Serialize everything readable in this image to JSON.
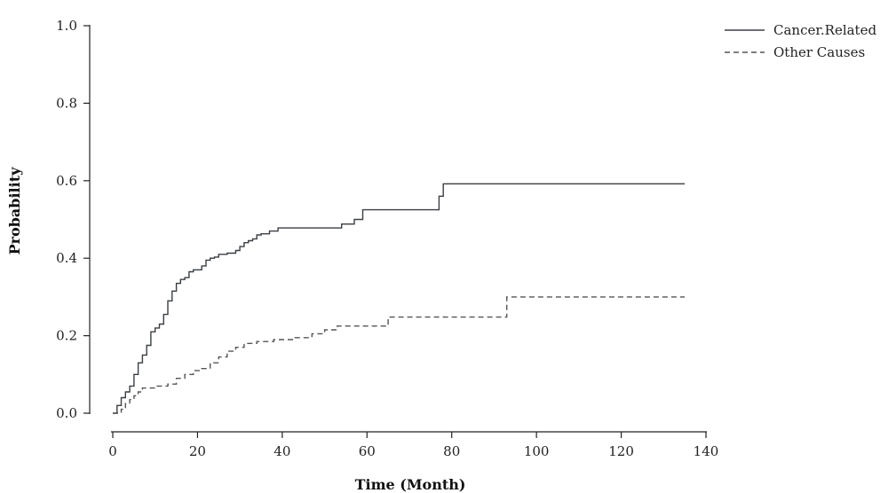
{
  "chart_data": {
    "type": "line",
    "title": "",
    "xlabel": "Time (Month)",
    "ylabel": "Probability",
    "xlim": [
      0,
      140
    ],
    "ylim": [
      0,
      1.0
    ],
    "xticks": [
      0,
      20,
      40,
      60,
      80,
      100,
      120,
      140
    ],
    "yticks": [
      0.0,
      0.2,
      0.4,
      0.6,
      0.8,
      1.0
    ],
    "ytick_labels": [
      "0.0",
      "0.2",
      "0.4",
      "0.6",
      "0.8",
      "1.0"
    ],
    "grid": false,
    "legend_position": "top-right",
    "series": [
      {
        "name": "Cancer.Related",
        "style": "solid",
        "color": "#3a3f44",
        "step": true,
        "x": [
          0,
          1,
          2,
          3,
          4,
          5,
          6,
          7,
          8,
          9,
          10,
          11,
          12,
          13,
          14,
          15,
          16,
          17,
          18,
          19,
          21,
          22,
          23,
          24,
          25,
          27,
          29,
          30,
          31,
          32,
          33,
          34,
          35,
          37,
          39,
          54,
          57,
          59,
          77,
          78,
          135
        ],
        "y": [
          0.0,
          0.02,
          0.04,
          0.055,
          0.07,
          0.1,
          0.13,
          0.15,
          0.175,
          0.21,
          0.22,
          0.23,
          0.255,
          0.29,
          0.315,
          0.335,
          0.345,
          0.35,
          0.365,
          0.37,
          0.38,
          0.395,
          0.4,
          0.403,
          0.41,
          0.413,
          0.42,
          0.43,
          0.44,
          0.445,
          0.45,
          0.46,
          0.463,
          0.47,
          0.478,
          0.488,
          0.5,
          0.525,
          0.56,
          0.592,
          0.592
        ]
      },
      {
        "name": "Other Causes",
        "style": "dashed",
        "color": "#555555",
        "step": true,
        "x": [
          0,
          2,
          3,
          4,
          5,
          6,
          7,
          10,
          13,
          15,
          17,
          19,
          21,
          23,
          25,
          27,
          29,
          31,
          34,
          38,
          43,
          47,
          50,
          53,
          65,
          93,
          135
        ],
        "y": [
          0.0,
          0.01,
          0.025,
          0.035,
          0.045,
          0.055,
          0.065,
          0.07,
          0.075,
          0.09,
          0.1,
          0.11,
          0.115,
          0.13,
          0.145,
          0.16,
          0.17,
          0.18,
          0.185,
          0.19,
          0.195,
          0.205,
          0.215,
          0.225,
          0.248,
          0.3,
          0.3
        ]
      }
    ]
  }
}
